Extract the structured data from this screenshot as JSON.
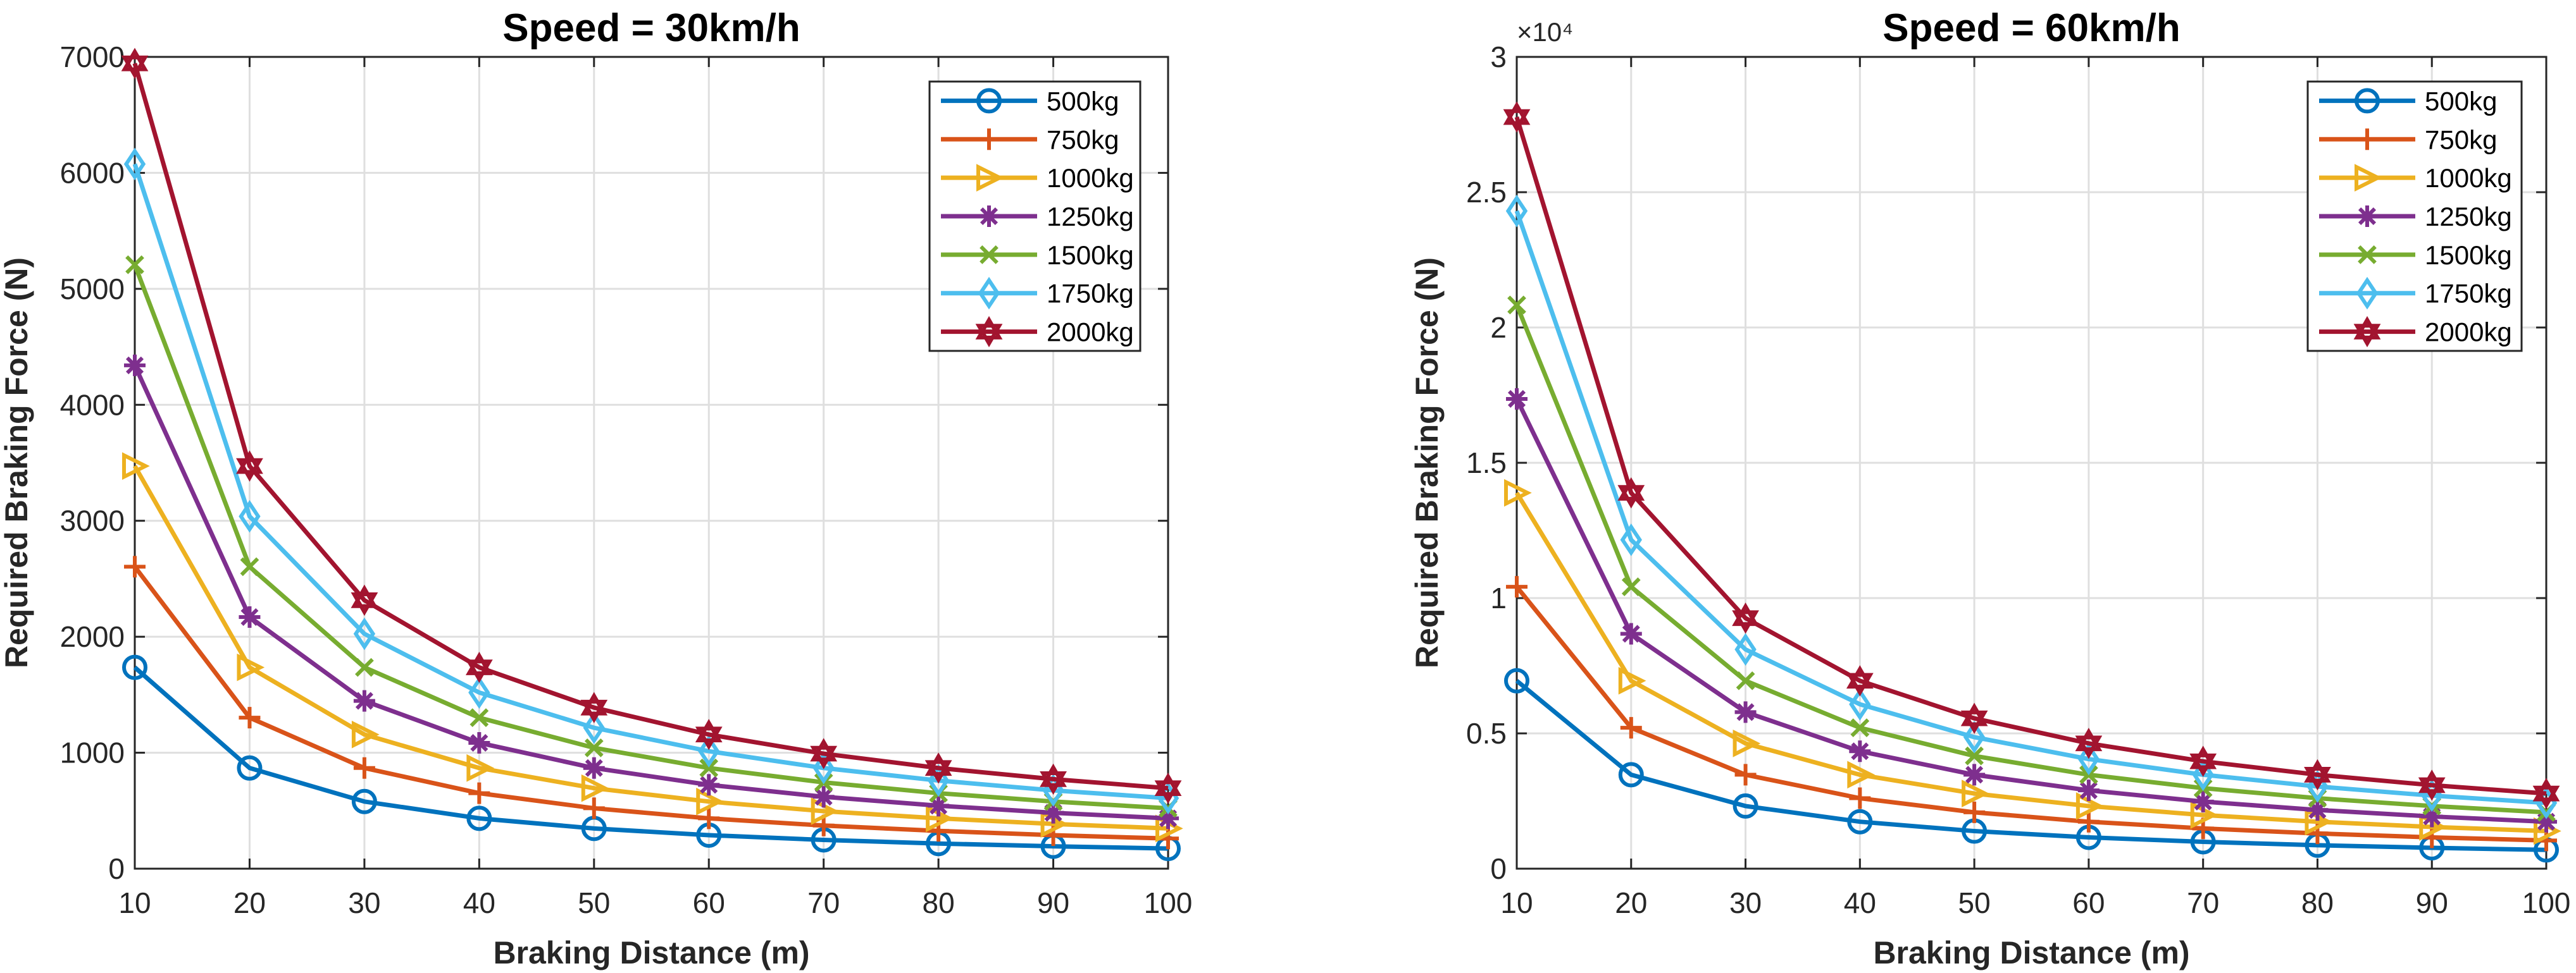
{
  "chart_data": [
    {
      "type": "line",
      "title": "Speed = 30km/h",
      "xlabel": "Braking Distance (m)",
      "ylabel": "Required Braking Force (N)",
      "xlim": [
        10,
        100
      ],
      "ylim": [
        0,
        7000
      ],
      "xticks": [
        10,
        20,
        30,
        40,
        50,
        60,
        70,
        80,
        90,
        100
      ],
      "yticks": [
        0,
        1000,
        2000,
        3000,
        4000,
        5000,
        6000,
        7000
      ],
      "ytick_labels": [
        "0",
        "1000",
        "2000",
        "3000",
        "4000",
        "5000",
        "6000",
        "7000"
      ],
      "exponent_label": null,
      "grid": true,
      "legend_position": "top-right",
      "x": [
        10,
        20,
        30,
        40,
        50,
        60,
        70,
        80,
        90,
        100
      ],
      "series": [
        {
          "name": "500kg",
          "color": "#0072BD",
          "marker": "circle",
          "values": [
            1736,
            868,
            579,
            434,
            347,
            289,
            248,
            217,
            193,
            174
          ]
        },
        {
          "name": "750kg",
          "color": "#D95319",
          "marker": "plus",
          "values": [
            2604,
            1302,
            868,
            651,
            521,
            434,
            372,
            326,
            289,
            260
          ]
        },
        {
          "name": "1000kg",
          "color": "#EDB120",
          "marker": "triangle-right",
          "values": [
            3472,
            1736,
            1157,
            868,
            694,
            579,
            496,
            434,
            386,
            347
          ]
        },
        {
          "name": "1250kg",
          "color": "#7E2F8E",
          "marker": "asterisk",
          "values": [
            4340,
            2170,
            1447,
            1085,
            868,
            723,
            620,
            543,
            482,
            434
          ]
        },
        {
          "name": "1500kg",
          "color": "#77AC30",
          "marker": "x",
          "values": [
            5208,
            2604,
            1736,
            1302,
            1042,
            868,
            744,
            651,
            579,
            521
          ]
        },
        {
          "name": "1750kg",
          "color": "#4DBEEE",
          "marker": "diamond",
          "values": [
            6076,
            3038,
            2025,
            1519,
            1215,
            1013,
            868,
            760,
            675,
            608
          ]
        },
        {
          "name": "2000kg",
          "color": "#A2142F",
          "marker": "hexagram",
          "values": [
            6944,
            3472,
            2315,
            1736,
            1389,
            1157,
            992,
            868,
            772,
            694
          ]
        }
      ]
    },
    {
      "type": "line",
      "title": "Speed = 60km/h",
      "xlabel": "Braking Distance (m)",
      "ylabel": "Required Braking Force (N)",
      "xlim": [
        10,
        100
      ],
      "ylim": [
        0,
        30000
      ],
      "xticks": [
        10,
        20,
        30,
        40,
        50,
        60,
        70,
        80,
        90,
        100
      ],
      "yticks": [
        0,
        5000,
        10000,
        15000,
        20000,
        25000,
        30000
      ],
      "ytick_labels": [
        "0",
        "0.5",
        "1",
        "1.5",
        "2",
        "2.5",
        "3"
      ],
      "exponent_label": "×10⁴",
      "grid": true,
      "legend_position": "top-right",
      "x": [
        10,
        20,
        30,
        40,
        50,
        60,
        70,
        80,
        90,
        100
      ],
      "series": [
        {
          "name": "500kg",
          "color": "#0072BD",
          "marker": "circle",
          "values": [
            6944,
            3472,
            2315,
            1736,
            1389,
            1157,
            992,
            868,
            772,
            694
          ]
        },
        {
          "name": "750kg",
          "color": "#D95319",
          "marker": "plus",
          "values": [
            10417,
            5208,
            3472,
            2604,
            2083,
            1736,
            1488,
            1302,
            1157,
            1042
          ]
        },
        {
          "name": "1000kg",
          "color": "#EDB120",
          "marker": "triangle-right",
          "values": [
            13889,
            6944,
            4630,
            3472,
            2778,
            2315,
            1984,
            1736,
            1543,
            1389
          ]
        },
        {
          "name": "1250kg",
          "color": "#7E2F8E",
          "marker": "asterisk",
          "values": [
            17361,
            8681,
            5787,
            4340,
            3472,
            2894,
            2480,
            2170,
            1929,
            1736
          ]
        },
        {
          "name": "1500kg",
          "color": "#77AC30",
          "marker": "x",
          "values": [
            20833,
            10417,
            6944,
            5208,
            4167,
            3472,
            2976,
            2604,
            2315,
            2083
          ]
        },
        {
          "name": "1750kg",
          "color": "#4DBEEE",
          "marker": "diamond",
          "values": [
            24306,
            12153,
            8102,
            6076,
            4861,
            4051,
            3472,
            3038,
            2701,
            2431
          ]
        },
        {
          "name": "2000kg",
          "color": "#A2142F",
          "marker": "hexagram",
          "values": [
            27778,
            13889,
            9259,
            6944,
            5556,
            4630,
            3968,
            3472,
            3086,
            2778
          ]
        }
      ]
    }
  ]
}
